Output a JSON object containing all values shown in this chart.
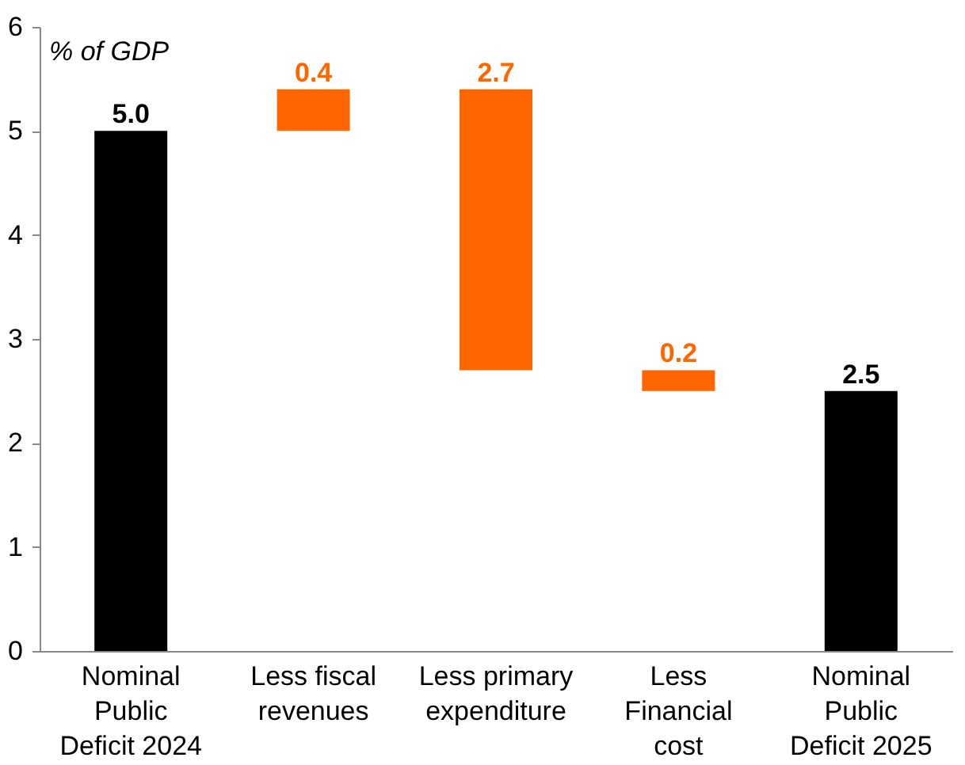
{
  "chart_data": {
    "type": "bar",
    "annotations": [
      "% of GDP"
    ],
    "categories": [
      "Nominal Public Deficit 2024",
      "Less fiscal revenues",
      "Less primary expenditure",
      "Less Financial cost",
      "Nominal Public Deficit 2025"
    ],
    "values": [
      5.0,
      0.4,
      -2.7,
      -0.2,
      2.5
    ],
    "base": [
      0,
      5.0,
      5.4,
      2.7,
      0
    ],
    "colors": [
      "#000000",
      "#ff6600",
      "#ff6600",
      "#ff6600",
      "#000000"
    ],
    "value_labels": [
      "5.0",
      "0.4",
      "2.7",
      "0.2",
      "2.5"
    ],
    "ylim": [
      0,
      6
    ],
    "yticks": [
      0,
      1,
      2,
      3,
      4,
      5,
      6
    ],
    "grid": false
  }
}
